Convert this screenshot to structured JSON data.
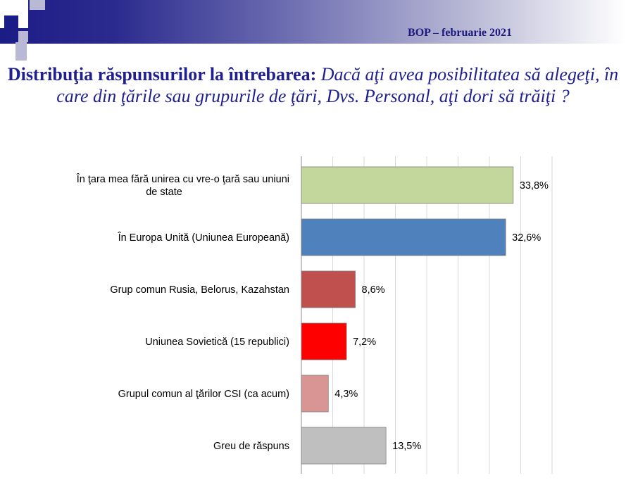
{
  "header": {
    "text": "BOP – februarie 2021",
    "gradient_start": "#1c1c86",
    "gradient_end": "#ffffff"
  },
  "title": {
    "bold": "Distribuţia răspunsurilor la întrebarea:",
    "italic": "Dacă aţi avea posibilitatea să alegeţi, în care din ţările sau grupurile de ţări, Dvs. Personal,  aţi  dori să trăiţi ?"
  },
  "chart_data": {
    "type": "bar",
    "orientation": "horizontal",
    "xlim": [
      0,
      40
    ],
    "grid": true,
    "categories": [
      [
        "În ţara mea fără unirea cu vre-o ţară sau uniuni",
        "de state"
      ],
      [
        "În Europa Unită  (Uniunea Europeană)"
      ],
      [
        "Grup comun Rusia, Belorus, Kazahstan"
      ],
      [
        "Uniunea Sovietică (15 republici)"
      ],
      [
        "Grupul comun al ţărilor CSI (ca acum)"
      ],
      [
        "Greu de răspuns"
      ]
    ],
    "values": [
      33.8,
      32.6,
      8.6,
      7.2,
      4.3,
      13.5
    ],
    "value_labels": [
      "33,8%",
      "32,6%",
      "8,6%",
      "7,2%",
      "4,3%",
      "13,5%"
    ],
    "colors": [
      "#c3d69b",
      "#4f81bd",
      "#c0504d",
      "#ff0000",
      "#d99594",
      "#bfbfbf"
    ]
  }
}
